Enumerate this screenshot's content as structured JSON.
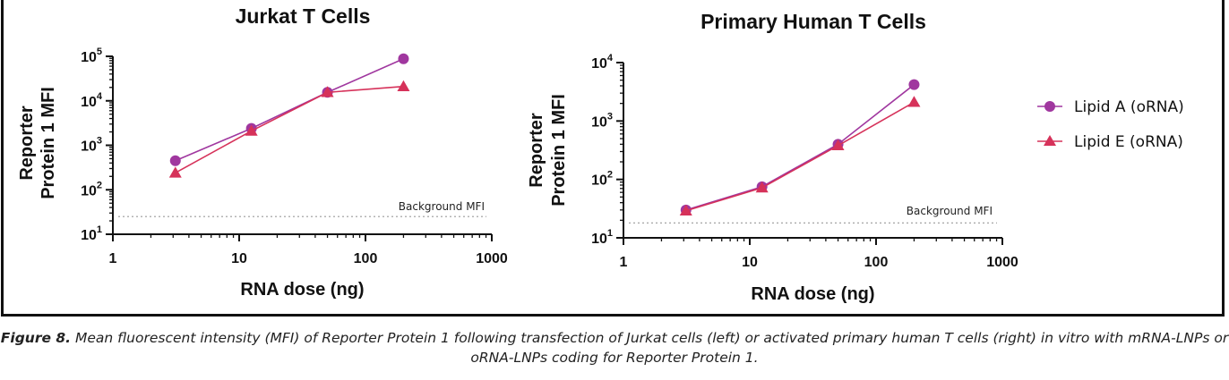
{
  "chart_data": [
    {
      "type": "line",
      "title": "Jurkat T Cells",
      "xlabel": "RNA dose (ng)",
      "ylabel": [
        "Reporter",
        "Protein 1 MFI"
      ],
      "xscale": "log",
      "yscale": "log",
      "xlim": [
        1,
        1000
      ],
      "ylim": [
        10,
        100000
      ],
      "xticks": [
        "1",
        "10",
        "100",
        "1000"
      ],
      "yticks": [
        {
          "base": "10",
          "exp": "1"
        },
        {
          "base": "10",
          "exp": "2"
        },
        {
          "base": "10",
          "exp": "3"
        },
        {
          "base": "10",
          "exp": "4"
        },
        {
          "base": "10",
          "exp": "5"
        }
      ],
      "background": {
        "label": "Background MFI",
        "value": 25
      },
      "series": [
        {
          "name": "Lipid A (oRNA)",
          "x": [
            3.125,
            12.5,
            50,
            200
          ],
          "y": [
            450,
            2400,
            15500,
            88000
          ]
        },
        {
          "name": "Lipid E (oRNA)",
          "x": [
            3.125,
            12.5,
            50,
            200
          ],
          "y": [
            240,
            2100,
            15500,
            21000
          ]
        }
      ]
    },
    {
      "type": "line",
      "title": "Primary Human T Cells",
      "xlabel": "RNA dose (ng)",
      "ylabel": [
        "Reporter",
        "Protein 1 MFI"
      ],
      "xscale": "log",
      "yscale": "log",
      "xlim": [
        1,
        1000
      ],
      "ylim": [
        10,
        10000
      ],
      "xticks": [
        "1",
        "10",
        "100",
        "1000"
      ],
      "yticks": [
        {
          "base": "10",
          "exp": "1"
        },
        {
          "base": "10",
          "exp": "2"
        },
        {
          "base": "10",
          "exp": "3"
        },
        {
          "base": "10",
          "exp": "4"
        }
      ],
      "background": {
        "label": "Background MFI",
        "value": 18
      },
      "series": [
        {
          "name": "Lipid A (oRNA)",
          "x": [
            3.125,
            12.5,
            50,
            200
          ],
          "y": [
            30,
            75,
            400,
            4200
          ]
        },
        {
          "name": "Lipid E (oRNA)",
          "x": [
            3.125,
            12.5,
            50,
            200
          ],
          "y": [
            29,
            72,
            380,
            2100
          ]
        }
      ]
    }
  ],
  "legend": {
    "placement": "right",
    "items": [
      {
        "label": "Lipid A (oRNA)",
        "marker": "circle",
        "color": "#a0379f"
      },
      {
        "label": "Lipid E (oRNA)",
        "marker": "triangle",
        "color": "#d6325a"
      }
    ]
  },
  "colors": {
    "lipid_a": "#a0379f",
    "lipid_e": "#d6325a",
    "axis": "#111111"
  },
  "caption": {
    "label": "Figure 8.",
    "text": " Mean fluorescent intensity (MFI) of Reporter Protein 1 following transfection of Jurkat cells (left) or activated primary human T cells (right) in vitro with mRNA-LNPs or oRNA-LNPs coding for Reporter Protein 1."
  }
}
